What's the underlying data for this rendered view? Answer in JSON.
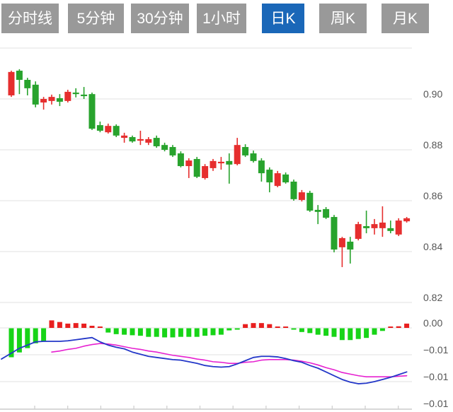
{
  "tabs": {
    "items": [
      {
        "label": "分时线",
        "active": false
      },
      {
        "label": "5分钟",
        "active": false
      },
      {
        "label": "30分钟",
        "active": false
      },
      {
        "label": "1小时",
        "active": false
      },
      {
        "label": "日K",
        "active": true
      },
      {
        "label": "周K",
        "active": false
      },
      {
        "label": "月K",
        "active": false
      }
    ]
  },
  "colors": {
    "tab_active_bg": "#1a67b8",
    "tab_inactive_bg": "#999999",
    "tab_text": "#ffffff",
    "candle_up": "#e62e2e",
    "candle_down": "#28a32d",
    "hist_up": "#e81f1f",
    "hist_down": "#17d417",
    "dif_line": "#2337c8",
    "dea_line": "#e620d0",
    "gridline": "#ececec",
    "axis_line": "#cccccc",
    "axis_label": "#555555"
  },
  "chart_data": {
    "type": "candlestick",
    "description": "Daily K-line (日K) price chart with MACD sub-panel",
    "legend_position": "none",
    "grid": true,
    "price_panel": {
      "ylim": [
        0.8185,
        0.922
      ],
      "y_axis": {
        "gridlines": [
          0.92,
          0.9,
          0.88,
          0.86,
          0.84,
          0.82
        ],
        "labels": [
          {
            "text": "0.90",
            "value": 0.9
          },
          {
            "text": "0.88",
            "value": 0.88
          },
          {
            "text": "0.86",
            "value": 0.86
          },
          {
            "text": "0.84",
            "value": 0.84
          },
          {
            "text": "0.82",
            "value": 0.82
          }
        ]
      },
      "candles_ohlc": [
        [
          0.9014,
          0.9111,
          0.9008,
          0.9106
        ],
        [
          0.9111,
          0.9117,
          0.9019,
          0.9075
        ],
        [
          0.9075,
          0.9083,
          0.9014,
          0.9042
        ],
        [
          0.9056,
          0.9069,
          0.8967,
          0.8978
        ],
        [
          0.8986,
          0.9008,
          0.8958,
          0.9
        ],
        [
          0.8992,
          0.9017,
          0.8978,
          0.9008
        ],
        [
          0.9003,
          0.9019,
          0.8972,
          0.8989
        ],
        [
          0.8992,
          0.9036,
          0.8986,
          0.9028
        ],
        [
          0.9025,
          0.9042,
          0.9006,
          0.9019
        ],
        [
          0.9017,
          0.9047,
          0.9,
          0.9011
        ],
        [
          0.9019,
          0.9025,
          0.8878,
          0.8883
        ],
        [
          0.8897,
          0.8911,
          0.8869,
          0.8875
        ],
        [
          0.8869,
          0.8903,
          0.8864,
          0.8894
        ],
        [
          0.8894,
          0.89,
          0.885,
          0.8856
        ],
        [
          0.8847,
          0.8867,
          0.8828,
          0.8856
        ],
        [
          0.885,
          0.8856,
          0.8828,
          0.8833
        ],
        [
          0.8836,
          0.8875,
          0.8819,
          0.8842
        ],
        [
          0.8828,
          0.885,
          0.8819,
          0.8842
        ],
        [
          0.8847,
          0.8856,
          0.8808,
          0.8814
        ],
        [
          0.8819,
          0.8828,
          0.8794,
          0.88
        ],
        [
          0.8811,
          0.8819,
          0.8772,
          0.8778
        ],
        [
          0.8786,
          0.8794,
          0.8731,
          0.8736
        ],
        [
          0.8736,
          0.8767,
          0.8689,
          0.8758
        ],
        [
          0.8764,
          0.8772,
          0.8689,
          0.8694
        ],
        [
          0.8689,
          0.8744,
          0.8683,
          0.8736
        ],
        [
          0.8728,
          0.8764,
          0.8717,
          0.8756
        ],
        [
          0.8747,
          0.8772,
          0.8722,
          0.8753
        ],
        [
          0.8756,
          0.8786,
          0.8667,
          0.8742
        ],
        [
          0.8744,
          0.8847,
          0.8739,
          0.8819
        ],
        [
          0.8811,
          0.8822,
          0.8772,
          0.8778
        ],
        [
          0.8786,
          0.8797,
          0.875,
          0.8756
        ],
        [
          0.8758,
          0.8767,
          0.8675,
          0.8708
        ],
        [
          0.8722,
          0.8731,
          0.8633,
          0.8672
        ],
        [
          0.8658,
          0.8717,
          0.8653,
          0.8708
        ],
        [
          0.8703,
          0.8711,
          0.8667,
          0.8672
        ],
        [
          0.8675,
          0.8683,
          0.86,
          0.8606
        ],
        [
          0.8603,
          0.8642,
          0.8597,
          0.8633
        ],
        [
          0.8631,
          0.8639,
          0.8556,
          0.8561
        ],
        [
          0.8564,
          0.8583,
          0.8508,
          0.8556
        ],
        [
          0.8567,
          0.8575,
          0.8528,
          0.8533
        ],
        [
          0.8536,
          0.8544,
          0.8397,
          0.8408
        ],
        [
          0.8417,
          0.8458,
          0.8339,
          0.8453
        ],
        [
          0.8439,
          0.8458,
          0.8353,
          0.8408
        ],
        [
          0.845,
          0.8517,
          0.8444,
          0.8508
        ],
        [
          0.85,
          0.8561,
          0.8472,
          0.8492
        ],
        [
          0.8492,
          0.8528,
          0.8467,
          0.8508
        ],
        [
          0.8492,
          0.8578,
          0.8458,
          0.8514
        ],
        [
          0.8492,
          0.8522,
          0.8472,
          0.8481
        ],
        [
          0.8467,
          0.8531,
          0.8461,
          0.8522
        ],
        [
          0.8519,
          0.8536,
          0.8514,
          0.8531
        ]
      ]
    },
    "macd_panel": {
      "ylim": [
        -0.015,
        0.0025
      ],
      "y_axis": {
        "gridlines": [
          0.0,
          -0.005,
          -0.01
        ],
        "labels": [
          {
            "text": "0.00",
            "value": 0.0
          },
          {
            "text": "−0.01",
            "value": -0.005
          },
          {
            "text": "−0.01",
            "value": -0.01
          },
          {
            "text": "−0.01",
            "value": -0.015
          }
        ],
        "baseline_value": -0.015
      },
      "histogram": [
        -0.0054,
        -0.0045,
        -0.0037,
        -0.0028,
        -0.0025,
        0.0014,
        0.0011,
        0.0008,
        0.0009,
        0.0008,
        0.0004,
        0.0001,
        -0.0008,
        -0.0011,
        -0.0012,
        -0.0013,
        -0.0014,
        -0.0016,
        -0.0016,
        -0.0017,
        -0.0017,
        -0.0016,
        -0.0016,
        -0.0016,
        -0.0014,
        -0.0013,
        -0.0012,
        -0.0004,
        -0.0002,
        0.0007,
        0.0009,
        0.0009,
        0.0007,
        0.0002,
        0.0001,
        -0.0002,
        -0.0007,
        -0.0009,
        -0.0012,
        -0.0014,
        -0.0016,
        -0.0022,
        -0.0022,
        -0.002,
        -0.0018,
        -0.0012,
        -0.0005,
        0.0002,
        0.0003,
        0.0008
      ],
      "dif": [
        -0.0047,
        -0.0038,
        -0.0032,
        -0.0026,
        -0.0025,
        -0.0025,
        -0.0025,
        -0.0024,
        -0.0022,
        -0.002,
        -0.0018,
        -0.0026,
        -0.0032,
        -0.0036,
        -0.0039,
        -0.0045,
        -0.0049,
        -0.0053,
        -0.0055,
        -0.0057,
        -0.0059,
        -0.006,
        -0.0063,
        -0.0066,
        -0.007,
        -0.0072,
        -0.0073,
        -0.0072,
        -0.0067,
        -0.0061,
        -0.0055,
        -0.0053,
        -0.0053,
        -0.0054,
        -0.0057,
        -0.0061,
        -0.0064,
        -0.007,
        -0.0075,
        -0.0082,
        -0.0089,
        -0.0096,
        -0.0101,
        -0.0104,
        -0.0103,
        -0.01,
        -0.0096,
        -0.0092,
        -0.0087,
        -0.0082
      ],
      "dif_edge_start": -0.0058,
      "dea": [
        null,
        null,
        null,
        null,
        null,
        -0.0045,
        -0.0043,
        -0.004,
        -0.0038,
        -0.0034,
        -0.0031,
        -0.0029,
        -0.003,
        -0.0032,
        -0.0035,
        -0.0038,
        -0.004,
        -0.0043,
        -0.0045,
        -0.0048,
        -0.0051,
        -0.0053,
        -0.0055,
        -0.0058,
        -0.006,
        -0.0063,
        -0.0064,
        -0.0066,
        -0.0066,
        -0.0064,
        -0.0063,
        -0.006,
        -0.0059,
        -0.0059,
        -0.0059,
        -0.006,
        -0.0062,
        -0.0065,
        -0.0069,
        -0.0074,
        -0.0078,
        -0.0083,
        -0.0086,
        -0.0089,
        -0.0091,
        -0.0091,
        -0.0091,
        -0.0091,
        -0.009,
        -0.0089
      ]
    }
  }
}
